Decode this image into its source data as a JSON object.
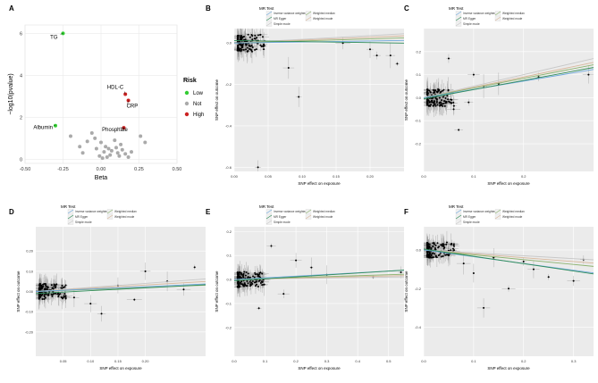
{
  "figure": {
    "panel_labels": [
      "A",
      "B",
      "C",
      "D",
      "E",
      "F"
    ]
  },
  "colors": {
    "panel_bg": "#ebebeb",
    "grid": "#ffffff",
    "point": "#000000",
    "ivw": "#6fa8dc",
    "mr_egger": "#2e8b57",
    "simple_mode": "#c8c8c8",
    "weighted_median": "#8db36f",
    "weighted_mode": "#d8b79b",
    "low": "#33cc33",
    "not": "#aaaaaa",
    "high": "#cc2222"
  },
  "chart_data": [
    {
      "panel": "A",
      "type": "scatter",
      "title": "",
      "xlabel": "Beta",
      "ylabel": "−log10(pvalue)",
      "xlim": [
        -0.5,
        0.5
      ],
      "ylim": [
        -0.2,
        6.4
      ],
      "xticks": [
        -0.5,
        -0.25,
        0.0,
        0.25,
        0.5
      ],
      "xtick_labels": [
        "-0.50",
        "-0.25",
        "0.00",
        "0.25",
        "0.50"
      ],
      "yticks": [
        0,
        2,
        4,
        6
      ],
      "ytick_labels": [
        "0",
        "2",
        "4",
        "6"
      ],
      "legend": {
        "title": "Risk",
        "position": "right",
        "entries": [
          "Low",
          "Not",
          "High"
        ]
      },
      "labeled_points": [
        {
          "label": "TG",
          "x": -0.25,
          "y": 6.0,
          "risk": "Low"
        },
        {
          "label": "Albumin",
          "x": -0.3,
          "y": 1.6,
          "risk": "Low"
        },
        {
          "label": "HDL-C",
          "x": 0.16,
          "y": 3.1,
          "risk": "High"
        },
        {
          "label": "CRP",
          "x": 0.18,
          "y": 2.8,
          "risk": "High"
        },
        {
          "label": "Phosphate",
          "x": 0.15,
          "y": 1.5,
          "risk": "High"
        }
      ],
      "points": [
        {
          "x": -0.2,
          "y": 1.1
        },
        {
          "x": -0.14,
          "y": 0.6
        },
        {
          "x": -0.12,
          "y": 0.3
        },
        {
          "x": -0.09,
          "y": 0.85
        },
        {
          "x": -0.06,
          "y": 1.25
        },
        {
          "x": -0.04,
          "y": 1.0
        },
        {
          "x": -0.03,
          "y": 0.5
        },
        {
          "x": -0.01,
          "y": 0.15
        },
        {
          "x": 0.0,
          "y": 0.8
        },
        {
          "x": 0.01,
          "y": 0.05
        },
        {
          "x": 0.02,
          "y": 0.35
        },
        {
          "x": 0.03,
          "y": 0.6
        },
        {
          "x": 0.04,
          "y": 0.1
        },
        {
          "x": 0.05,
          "y": 0.5
        },
        {
          "x": 0.06,
          "y": 0.2
        },
        {
          "x": 0.07,
          "y": 0.4
        },
        {
          "x": 0.09,
          "y": 0.9
        },
        {
          "x": 0.1,
          "y": 0.55
        },
        {
          "x": 0.11,
          "y": 0.3
        },
        {
          "x": 0.12,
          "y": 0.15
        },
        {
          "x": 0.13,
          "y": 0.7
        },
        {
          "x": 0.14,
          "y": 0.45
        },
        {
          "x": 0.16,
          "y": 0.25
        },
        {
          "x": 0.18,
          "y": 0.1
        },
        {
          "x": 0.2,
          "y": 0.35
        },
        {
          "x": 0.26,
          "y": 1.1
        },
        {
          "x": 0.29,
          "y": 0.8
        }
      ]
    },
    {
      "panel": "B",
      "type": "scatter",
      "xlabel": "SNP effect on exposure",
      "ylabel": "SNP effect on outcome",
      "xlim": [
        0.0,
        0.25
      ],
      "ylim": [
        -0.62,
        0.07
      ],
      "xticks": [
        0.0,
        0.05,
        0.1,
        0.15,
        0.2
      ],
      "xtick_labels": [
        "0.00",
        "0.05",
        "0.10",
        "0.15",
        "0.20"
      ],
      "yticks": [
        0.0,
        -0.2,
        -0.4,
        -0.6
      ],
      "ytick_labels": [
        "0.0",
        "-0.2",
        "-0.4",
        "-0.6"
      ],
      "legend": {
        "title": "MR Test",
        "position": "top",
        "entries": [
          "Inverse variance weighted",
          "Weighted median",
          "MR Egger",
          "Weighted mode",
          "Simple mode"
        ]
      },
      "lines": {
        "ivw": 0.05,
        "mr_egger": [
          0.012,
          -0.05
        ],
        "simple_mode": 0.18,
        "weighted_median": 0.1,
        "weighted_mode": 0.14
      },
      "points": [
        {
          "x": 0.08,
          "y": -0.12
        },
        {
          "x": 0.2,
          "y": -0.03
        },
        {
          "x": 0.21,
          "y": -0.06
        },
        {
          "x": 0.23,
          "y": -0.06
        },
        {
          "x": 0.24,
          "y": -0.1
        },
        {
          "x": 0.035,
          "y": -0.6
        },
        {
          "x": 0.095,
          "y": -0.26
        },
        {
          "x": 0.16,
          "y": 0.0
        }
      ]
    },
    {
      "panel": "C",
      "type": "scatter",
      "xlabel": "SNP effect on exposure",
      "ylabel": "SNP effect on outcome",
      "xlim": [
        0.0,
        0.34
      ],
      "ylim": [
        -0.32,
        0.3
      ],
      "xticks": [
        0.0,
        0.1,
        0.2
      ],
      "xtick_labels": [
        "0.0",
        "0.1",
        "0.2"
      ],
      "yticks": [
        0.2,
        0.1,
        0.0,
        -0.1,
        -0.2
      ],
      "ytick_labels": [
        "0.2",
        "0.1",
        "0.0",
        "-0.1",
        "-0.2"
      ],
      "legend": {
        "title": "MR Test",
        "position": "top",
        "entries": [
          "Inverse variance weighted",
          "Weighted median",
          "MR Egger",
          "Weighted mode",
          "Simple mode"
        ]
      },
      "lines": {
        "ivw": 0.36,
        "mr_egger": [
          -0.005,
          0.4
        ],
        "simple_mode": 0.5,
        "weighted_median": 0.42,
        "weighted_mode": 0.45
      },
      "points": [
        {
          "x": 0.33,
          "y": 0.1
        },
        {
          "x": 0.23,
          "y": 0.09
        },
        {
          "x": 0.12,
          "y": 0.05
        },
        {
          "x": 0.15,
          "y": 0.06
        },
        {
          "x": 0.09,
          "y": -0.02
        },
        {
          "x": 0.07,
          "y": -0.14
        },
        {
          "x": 0.05,
          "y": 0.17
        },
        {
          "x": 0.1,
          "y": 0.1
        },
        {
          "x": 0.06,
          "y": -0.05
        }
      ]
    },
    {
      "panel": "D",
      "type": "scatter",
      "xlabel": "SNP effect on exposure",
      "ylabel": "SNP effect on outcome",
      "xlim": [
        0.0,
        0.31
      ],
      "ylim": [
        -0.32,
        0.32
      ],
      "xticks": [
        0.05,
        0.1,
        0.15,
        0.2
      ],
      "xtick_labels": [
        "0.05",
        "0.10",
        "0.15",
        "0.20"
      ],
      "yticks": [
        0.2,
        0.1,
        0.0,
        -0.1,
        -0.2
      ],
      "ytick_labels": [
        "0.20",
        "0.10",
        "0.00",
        "-0.10",
        "-0.20"
      ],
      "legend": {
        "title": "MR Test",
        "position": "top",
        "entries": [
          "Inverse variance weighted",
          "Weighted median",
          "MR Egger",
          "Weighted mode",
          "Simple mode"
        ]
      },
      "lines": {
        "ivw": 0.12,
        "mr_egger": [
          -0.01,
          0.14
        ],
        "simple_mode": 0.2,
        "weighted_median": 0.1,
        "weighted_mode": 0.16
      },
      "points": [
        {
          "x": 0.29,
          "y": 0.12
        },
        {
          "x": 0.24,
          "y": 0.05
        },
        {
          "x": 0.2,
          "y": 0.1
        },
        {
          "x": 0.15,
          "y": 0.03
        },
        {
          "x": 0.1,
          "y": -0.06
        },
        {
          "x": 0.12,
          "y": -0.11
        },
        {
          "x": 0.07,
          "y": -0.03
        },
        {
          "x": 0.18,
          "y": -0.04
        },
        {
          "x": 0.27,
          "y": 0.01
        }
      ]
    },
    {
      "panel": "E",
      "type": "scatter",
      "xlabel": "SNP effect on exposure",
      "ylabel": "SNP effect on outcome",
      "xlim": [
        0.0,
        0.55
      ],
      "ylim": [
        -0.32,
        0.22
      ],
      "xticks": [
        0.0,
        0.1,
        0.2,
        0.3,
        0.4,
        0.5
      ],
      "xtick_labels": [
        "0.0",
        "0.1",
        "0.2",
        "0.3",
        "0.4",
        "0.5"
      ],
      "yticks": [
        0.2,
        0.1,
        0.0,
        -0.1,
        -0.2
      ],
      "ytick_labels": [
        "0.2",
        "0.1",
        "0.0",
        "-0.1",
        "-0.2"
      ],
      "legend": {
        "title": "MR Test",
        "position": "top",
        "entries": [
          "Inverse variance weighted",
          "Weighted median",
          "MR Egger",
          "Weighted mode",
          "Simple mode"
        ]
      },
      "lines": {
        "ivw": 0.07,
        "mr_egger": [
          -0.005,
          0.08
        ],
        "simple_mode": 0.02,
        "weighted_median": 0.04,
        "weighted_mode": 0.03
      },
      "points": [
        {
          "x": 0.25,
          "y": 0.05
        },
        {
          "x": 0.3,
          "y": 0.02
        },
        {
          "x": 0.45,
          "y": 0.01
        },
        {
          "x": 0.54,
          "y": 0.03
        },
        {
          "x": 0.12,
          "y": 0.14
        },
        {
          "x": 0.08,
          "y": -0.12
        },
        {
          "x": 0.16,
          "y": -0.06
        },
        {
          "x": 0.2,
          "y": 0.08
        }
      ]
    },
    {
      "panel": "F",
      "type": "scatter",
      "xlabel": "SNP effect on exposure",
      "ylabel": "SNP effect on outcome",
      "xlim": [
        0.0,
        0.34
      ],
      "ylim": [
        -0.55,
        0.12
      ],
      "xticks": [
        0.0,
        0.1,
        0.2,
        0.3
      ],
      "xtick_labels": [
        "0.0",
        "0.1",
        "0.2",
        "0.3"
      ],
      "yticks": [
        0.0,
        -0.2,
        -0.4
      ],
      "ytick_labels": [
        "0.0",
        "-0.2",
        "-0.4"
      ],
      "legend": {
        "title": "MR Test",
        "position": "top",
        "entries": [
          "Inverse variance weighted",
          "Weighted median",
          "MR Egger",
          "Weighted mode",
          "Simple mode"
        ]
      },
      "lines": {
        "ivw": -0.35,
        "mr_egger": [
          0.005,
          -0.38
        ],
        "simple_mode": -0.15,
        "weighted_median": -0.25,
        "weighted_mode": -0.2
      },
      "points": [
        {
          "x": 0.32,
          "y": -0.05
        },
        {
          "x": 0.22,
          "y": -0.1
        },
        {
          "x": 0.2,
          "y": -0.06
        },
        {
          "x": 0.14,
          "y": -0.04
        },
        {
          "x": 0.1,
          "y": -0.12
        },
        {
          "x": 0.12,
          "y": -0.3
        },
        {
          "x": 0.17,
          "y": -0.2
        },
        {
          "x": 0.25,
          "y": -0.14
        },
        {
          "x": 0.08,
          "y": -0.07
        },
        {
          "x": 0.3,
          "y": -0.16
        }
      ]
    }
  ]
}
